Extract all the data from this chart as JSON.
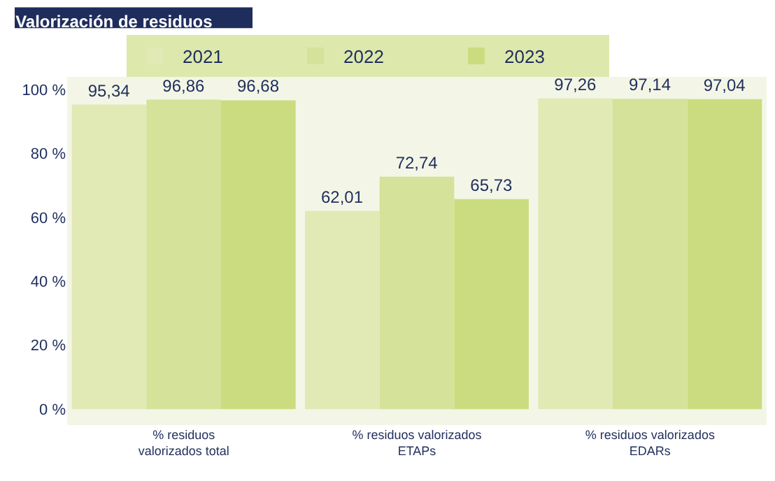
{
  "chart_data": {
    "type": "bar",
    "title": "Valorización de residuos",
    "categories": [
      "% residuos\nvalorizados total",
      "% residuos valorizados\nETAPs",
      "% residuos valorizados\nEDARs"
    ],
    "series": [
      {
        "name": "2021",
        "color": "#e1e9b5",
        "values": [
          95.34,
          62.01,
          97.26
        ],
        "value_labels": [
          "95,34",
          "62,01",
          "97,26"
        ]
      },
      {
        "name": "2022",
        "color": "#d4e29a",
        "values": [
          96.86,
          72.74,
          97.14
        ],
        "value_labels": [
          "96,86",
          "72,74",
          "97,14"
        ]
      },
      {
        "name": "2023",
        "color": "#cbdc80",
        "values": [
          96.68,
          65.73,
          97.04
        ],
        "value_labels": [
          "96,68",
          "65,73",
          "97,04"
        ]
      }
    ],
    "ylim": [
      -5,
      104
    ],
    "yticks": [
      {
        "value": 0,
        "label": "0 %"
      },
      {
        "value": 20,
        "label": "20 %"
      },
      {
        "value": 40,
        "label": "40 %"
      },
      {
        "value": 60,
        "label": "60 %"
      },
      {
        "value": 80,
        "label": "80 %"
      },
      {
        "value": 100,
        "label": "100 %"
      }
    ],
    "grid": false,
    "legend": "top"
  }
}
